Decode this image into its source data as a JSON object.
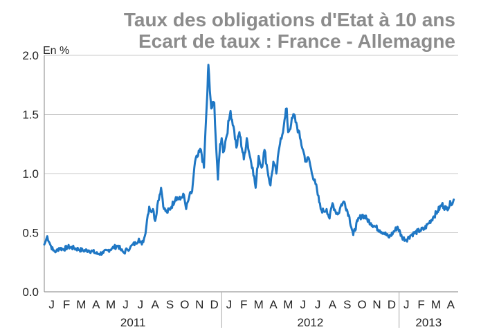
{
  "chart_data": {
    "type": "line",
    "title": "Taux des obligations d'Etat à 10 ans",
    "subtitle": "Ecart de taux : France - Allemagne",
    "ylabel": "En  %",
    "xlabel": "",
    "ylim": [
      0,
      2.0
    ],
    "yticks": [
      "0.0",
      "0.5",
      "1.0",
      "1.5",
      "2.0"
    ],
    "grid": true,
    "months": [
      "J",
      "F",
      "M",
      "A",
      "M",
      "J",
      "J",
      "A",
      "S",
      "O",
      "N",
      "D",
      "J",
      "F",
      "M",
      "A",
      "M",
      "J",
      "J",
      "A",
      "S",
      "O",
      "N",
      "D",
      "J",
      "F",
      "M",
      "A"
    ],
    "years": [
      {
        "label": "2011",
        "start_month": 0,
        "end_month": 12
      },
      {
        "label": "2012",
        "start_month": 12,
        "end_month": 24
      },
      {
        "label": "2013",
        "start_month": 24,
        "end_month": 28
      }
    ],
    "series": [
      {
        "name": "Ecart de taux France - Allemagne",
        "color": "#1f77c4",
        "x": [
          0.0,
          0.1,
          0.2,
          0.4,
          0.6,
          0.8,
          1.0,
          1.3,
          1.6,
          2.0,
          2.3,
          2.6,
          3.0,
          3.3,
          3.6,
          4.0,
          4.3,
          4.6,
          5.0,
          5.2,
          5.4,
          5.6,
          5.8,
          6.0,
          6.2,
          6.4,
          6.6,
          6.8,
          7.0,
          7.1,
          7.2,
          7.35,
          7.5,
          7.7,
          7.9,
          8.1,
          8.3,
          8.6,
          8.9,
          9.2,
          9.4,
          9.6,
          9.8,
          10.0,
          10.1,
          10.2,
          10.4,
          10.6,
          10.8,
          10.9,
          11.0,
          11.05,
          11.1,
          11.2,
          11.3,
          11.5,
          11.6,
          11.75,
          11.9,
          12.0,
          12.1,
          12.3,
          12.5,
          12.6,
          12.8,
          13.0,
          13.2,
          13.5,
          13.7,
          13.9,
          14.1,
          14.3,
          14.5,
          14.7,
          14.9,
          15.1,
          15.3,
          15.5,
          15.7,
          15.9,
          16.0,
          16.2,
          16.4,
          16.5,
          16.7,
          16.9,
          17.1,
          17.3,
          17.5,
          17.7,
          17.9,
          18.1,
          18.3,
          18.5,
          18.7,
          18.9,
          19.1,
          19.3,
          19.5,
          19.7,
          19.9,
          20.1,
          20.3,
          20.6,
          20.9,
          21.2,
          21.5,
          21.8,
          22.1,
          22.4,
          22.7,
          23.0,
          23.3,
          23.6,
          23.9,
          24.2,
          24.5,
          24.8,
          25.1,
          25.4,
          25.7,
          26.0,
          26.3,
          26.6,
          26.9,
          27.2,
          27.5,
          27.7
        ],
        "y": [
          0.4,
          0.43,
          0.47,
          0.4,
          0.35,
          0.34,
          0.37,
          0.36,
          0.38,
          0.37,
          0.36,
          0.35,
          0.35,
          0.34,
          0.32,
          0.33,
          0.35,
          0.37,
          0.39,
          0.35,
          0.33,
          0.36,
          0.37,
          0.4,
          0.41,
          0.45,
          0.4,
          0.47,
          0.65,
          0.72,
          0.68,
          0.7,
          0.6,
          0.77,
          0.88,
          0.7,
          0.67,
          0.72,
          0.8,
          0.78,
          0.83,
          0.7,
          0.8,
          0.85,
          0.98,
          1.1,
          1.15,
          1.2,
          1.05,
          1.35,
          1.6,
          1.75,
          1.92,
          1.7,
          1.55,
          1.6,
          1.3,
          0.95,
          1.25,
          1.3,
          1.18,
          1.3,
          1.45,
          1.53,
          1.4,
          1.22,
          1.35,
          1.12,
          1.3,
          1.15,
          1.05,
          0.88,
          1.15,
          1.05,
          1.2,
          1.03,
          0.9,
          1.1,
          1.0,
          1.22,
          1.3,
          1.4,
          1.55,
          1.35,
          1.42,
          1.5,
          1.4,
          1.3,
          1.2,
          1.1,
          1.13,
          1.0,
          0.95,
          0.82,
          0.7,
          0.68,
          0.7,
          0.62,
          0.75,
          0.68,
          0.66,
          0.74,
          0.76,
          0.65,
          0.48,
          0.6,
          0.65,
          0.62,
          0.58,
          0.55,
          0.52,
          0.5,
          0.46,
          0.5,
          0.55,
          0.46,
          0.44,
          0.48,
          0.5,
          0.52,
          0.53,
          0.58,
          0.63,
          0.68,
          0.74,
          0.7,
          0.75,
          0.78
        ]
      }
    ]
  }
}
